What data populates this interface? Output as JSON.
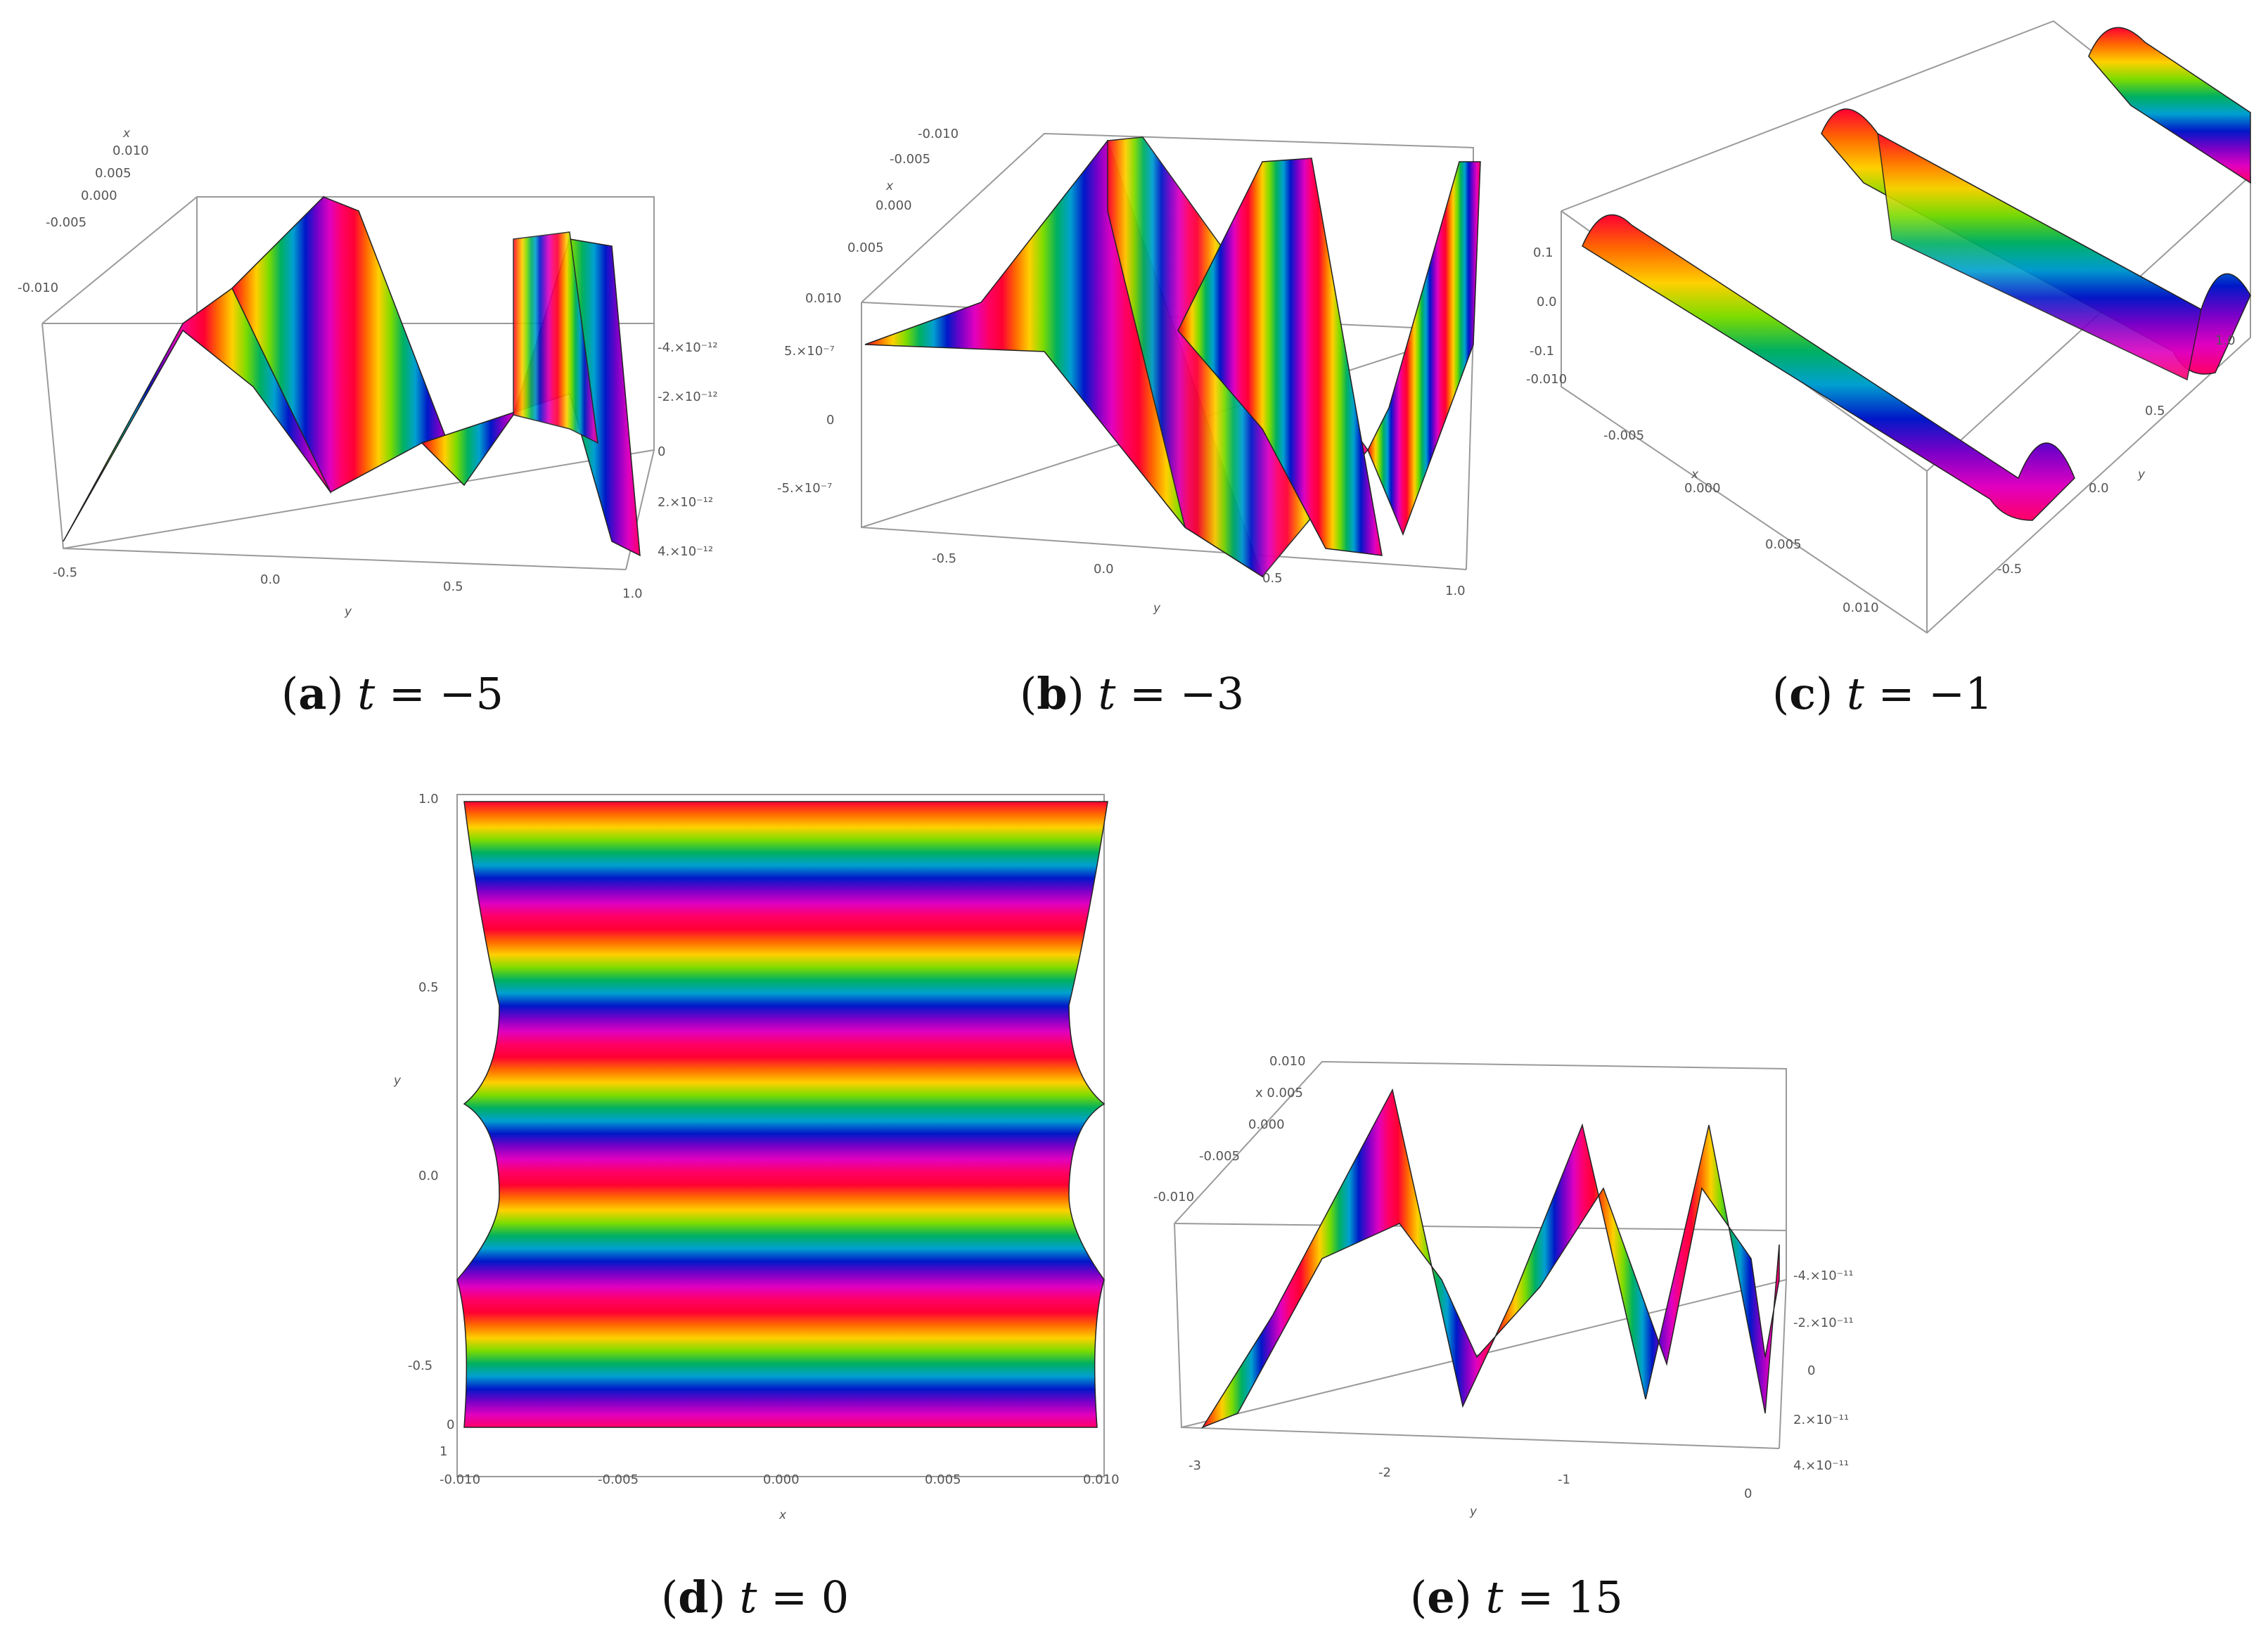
{
  "colors": {
    "rainbow": [
      "#ff0033",
      "#ff6a00",
      "#ffd000",
      "#7ddc00",
      "#00b060",
      "#00a0d0",
      "#0018c8",
      "#7a00c8",
      "#e000c0",
      "#ff0066"
    ],
    "axis": "#9a9a9a"
  },
  "chart_data": [
    {
      "type": "surface3d",
      "label": "a",
      "tvar": "t",
      "tvalue": "−5",
      "x_ticks": [
        "0.010",
        "0.005",
        "0.000",
        "-0.005",
        "-0.010"
      ],
      "y_ticks": [
        "-0.5",
        "0.0",
        "0.5",
        "1.0"
      ],
      "z_ticks": [
        "-4.×10⁻¹²",
        "-2.×10⁻¹²",
        "0",
        "2.×10⁻¹²",
        "4.×10⁻¹²"
      ],
      "xlabel": "x",
      "ylabel": "y",
      "y_range": [
        -0.6,
        1.0
      ],
      "x_range": [
        -0.01,
        0.01
      ],
      "z_range": [
        -4.5e-12,
        4.5e-12
      ],
      "profile_peaks_y": [
        -0.2,
        0.7
      ],
      "profile_troughs_y": [
        0.2
      ],
      "colormap": "rainbow"
    },
    {
      "type": "surface3d",
      "label": "b",
      "tvar": "t",
      "tvalue": "−3",
      "x_ticks": [
        "-0.010",
        "-0.005",
        "0.000",
        "0.005",
        "0.010"
      ],
      "y_ticks": [
        "-0.5",
        "0.0",
        "0.5",
        "1.0"
      ],
      "z_ticks": [
        "5.×10⁻⁷",
        "0",
        "-5.×10⁻⁷"
      ],
      "xlabel": "x",
      "ylabel": "y",
      "y_range": [
        -0.6,
        1.0
      ],
      "x_range": [
        -0.01,
        0.01
      ],
      "z_range": [
        -8e-07,
        8e-07
      ],
      "colormap": "rainbow"
    },
    {
      "type": "surface3d",
      "label": "c",
      "tvar": "t",
      "tvalue": "−1",
      "x_ticks": [
        "-0.010",
        "-0.005",
        "0.000",
        "0.005",
        "0.010"
      ],
      "y_ticks": [
        "-0.5",
        "0.0",
        "0.5",
        "1.0"
      ],
      "z_ticks": [
        "0.1",
        "0.0",
        "-0.1"
      ],
      "xlabel": "x",
      "ylabel": "y",
      "y_range": [
        -0.6,
        1.0
      ],
      "x_range": [
        -0.01,
        0.01
      ],
      "z_range": [
        -0.15,
        0.15
      ],
      "colormap": "rainbow"
    },
    {
      "type": "surface_topview",
      "label": "d",
      "tvar": "t",
      "tvalue": "0",
      "x_ticks": [
        "-0.010",
        "-0.005",
        "0.000",
        "0.005",
        "0.010"
      ],
      "y_ticks": [
        "1.0",
        "0.5",
        "0.0",
        "-0.5"
      ],
      "y_corner_ticks": [
        "1",
        "0"
      ],
      "xlabel": "x",
      "ylabel": "y",
      "x_range": [
        -0.01,
        0.01
      ],
      "y_range": [
        -0.65,
        1.0
      ],
      "colormap": "rainbow"
    },
    {
      "type": "surface3d",
      "label": "e",
      "tvar": "t",
      "tvalue": "15",
      "x_ticks": [
        "0.010",
        "x 0.005",
        "0.000",
        "-0.005",
        "-0.010"
      ],
      "y_ticks": [
        "-3",
        "-2",
        "-1",
        "0"
      ],
      "z_ticks": [
        "-4.×10⁻¹¹",
        "-2.×10⁻¹¹",
        "0",
        "2.×10⁻¹¹",
        "4.×10⁻¹¹"
      ],
      "xlabel": "y",
      "y_range": [
        -3.1,
        0.1
      ],
      "x_range": [
        -0.01,
        0.01
      ],
      "z_range": [
        -4.5e-11,
        4.5e-11
      ],
      "colormap": "rainbow"
    }
  ]
}
